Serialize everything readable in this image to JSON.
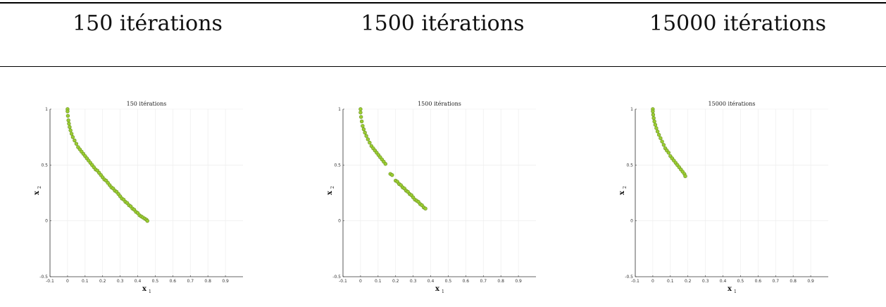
{
  "headers": [
    "150 itérations",
    "1500 itérations",
    "15000 itérations"
  ],
  "chart_data": [
    {
      "type": "scatter",
      "title": "150 itérations",
      "xlabel": "x",
      "xlabel_sub": "1",
      "ylabel": "x",
      "ylabel_sub": "2",
      "xlim": [
        -0.1,
        1.0
      ],
      "ylim": [
        -0.5,
        1.0
      ],
      "xticks": [
        "-0.1",
        "0",
        "0.1",
        "0.2",
        "0.3",
        "0.4",
        "0.5",
        "0.6",
        "0.7",
        "0.8",
        "0.9"
      ],
      "xtick_values": [
        -0.1,
        0,
        0.1,
        0.2,
        0.3,
        0.4,
        0.5,
        0.6,
        0.7,
        0.8,
        0.9
      ],
      "yticks": [
        "-0.5",
        "0",
        "0.5",
        "1"
      ],
      "ytick_values": [
        -0.5,
        0,
        0.5,
        1
      ],
      "grid": true,
      "marker_color": "#9acd32",
      "marker_edge": "#6b8e23",
      "x": [
        0.0,
        0.0,
        0.002,
        0.005,
        0.008,
        0.012,
        0.017,
        0.023,
        0.03,
        0.04,
        0.05,
        0.06,
        0.07,
        0.08,
        0.09,
        0.1,
        0.11,
        0.12,
        0.13,
        0.14,
        0.15,
        0.16,
        0.17,
        0.18,
        0.19,
        0.2,
        0.21,
        0.22,
        0.23,
        0.24,
        0.25,
        0.26,
        0.27,
        0.28,
        0.29,
        0.3,
        0.31,
        0.32,
        0.33,
        0.34,
        0.35,
        0.36,
        0.37,
        0.38,
        0.39,
        0.4,
        0.41,
        0.42,
        0.43,
        0.44,
        0.45,
        0.455
      ],
      "y": [
        1.0,
        0.98,
        0.94,
        0.9,
        0.87,
        0.84,
        0.81,
        0.78,
        0.75,
        0.72,
        0.69,
        0.66,
        0.64,
        0.62,
        0.6,
        0.58,
        0.56,
        0.54,
        0.52,
        0.5,
        0.48,
        0.46,
        0.45,
        0.43,
        0.41,
        0.39,
        0.37,
        0.36,
        0.34,
        0.32,
        0.3,
        0.29,
        0.27,
        0.26,
        0.24,
        0.22,
        0.2,
        0.19,
        0.17,
        0.16,
        0.14,
        0.13,
        0.11,
        0.1,
        0.08,
        0.07,
        0.05,
        0.04,
        0.03,
        0.02,
        0.01,
        0.0
      ]
    },
    {
      "type": "scatter",
      "title": "1500 itérations",
      "xlabel": "x",
      "xlabel_sub": "1",
      "ylabel": "x",
      "ylabel_sub": "2",
      "xlim": [
        -0.1,
        1.0
      ],
      "ylim": [
        -0.5,
        1.0
      ],
      "xticks": [
        "-0.1",
        "0",
        "0.1",
        "0.2",
        "0.3",
        "0.4",
        "0.5",
        "0.6",
        "0.7",
        "0.8",
        "0.9"
      ],
      "xtick_values": [
        -0.1,
        0,
        0.1,
        0.2,
        0.3,
        0.4,
        0.5,
        0.6,
        0.7,
        0.8,
        0.9
      ],
      "yticks": [
        "-0.5",
        "0",
        "0.5",
        "1"
      ],
      "ytick_values": [
        -0.5,
        0,
        0.5,
        1
      ],
      "grid": true,
      "marker_color": "#9acd32",
      "marker_edge": "#6b8e23",
      "x": [
        0.0,
        0.0,
        0.003,
        0.007,
        0.012,
        0.018,
        0.025,
        0.033,
        0.042,
        0.052,
        0.062,
        0.072,
        0.082,
        0.092,
        0.102,
        0.112,
        0.122,
        0.132,
        0.142,
        0.17,
        0.18,
        0.2,
        0.21,
        0.22,
        0.23,
        0.24,
        0.25,
        0.26,
        0.27,
        0.28,
        0.29,
        0.3,
        0.31,
        0.32,
        0.33,
        0.34,
        0.35,
        0.36,
        0.37
      ],
      "y": [
        1.0,
        0.97,
        0.93,
        0.89,
        0.85,
        0.82,
        0.79,
        0.76,
        0.73,
        0.7,
        0.67,
        0.65,
        0.63,
        0.61,
        0.59,
        0.57,
        0.55,
        0.53,
        0.51,
        0.42,
        0.41,
        0.36,
        0.35,
        0.33,
        0.32,
        0.3,
        0.29,
        0.27,
        0.26,
        0.24,
        0.23,
        0.21,
        0.19,
        0.18,
        0.17,
        0.15,
        0.14,
        0.12,
        0.11
      ]
    },
    {
      "type": "scatter",
      "title": "15000 itérations",
      "xlabel": "x",
      "xlabel_sub": "1",
      "ylabel": "x",
      "ylabel_sub": "2",
      "xlim": [
        -0.1,
        1.0
      ],
      "ylim": [
        -0.5,
        1.0
      ],
      "xticks": [
        "-0.1",
        "0",
        "0.1",
        "0.2",
        "0.3",
        "0.4",
        "0.5",
        "0.6",
        "0.7",
        "0.8",
        "0.9"
      ],
      "xtick_values": [
        -0.1,
        0,
        0.1,
        0.2,
        0.3,
        0.4,
        0.5,
        0.6,
        0.7,
        0.8,
        0.9
      ],
      "yticks": [
        "-0.5",
        "0",
        "0.5",
        "1"
      ],
      "ytick_values": [
        -0.5,
        0,
        0.5,
        1
      ],
      "grid": true,
      "marker_color": "#9acd32",
      "marker_edge": "#6b8e23",
      "x": [
        0.0,
        0.0,
        0.002,
        0.005,
        0.009,
        0.014,
        0.02,
        0.027,
        0.035,
        0.044,
        0.053,
        0.062,
        0.071,
        0.08,
        0.09,
        0.1,
        0.11,
        0.12,
        0.13,
        0.14,
        0.15,
        0.16,
        0.17,
        0.18,
        0.185
      ],
      "y": [
        1.0,
        0.98,
        0.95,
        0.92,
        0.89,
        0.86,
        0.83,
        0.8,
        0.77,
        0.74,
        0.71,
        0.68,
        0.65,
        0.63,
        0.61,
        0.58,
        0.56,
        0.54,
        0.52,
        0.5,
        0.48,
        0.46,
        0.44,
        0.42,
        0.4
      ]
    }
  ]
}
